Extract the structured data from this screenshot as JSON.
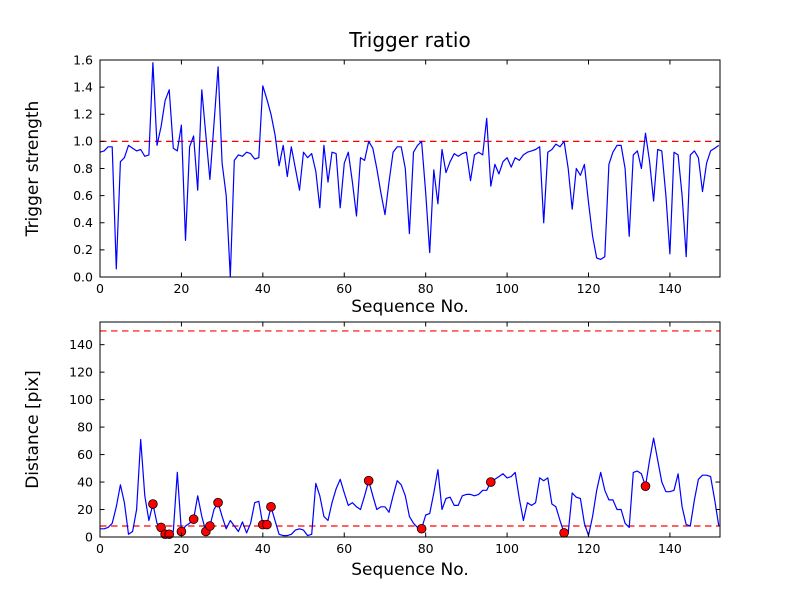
{
  "figure": {
    "background": "#ffffff",
    "frame_color": "#000000",
    "line_color": "#0000ff",
    "threshold_color": "#ff0000",
    "scatter_fill": "#ff0000",
    "scatter_edge": "#000000"
  },
  "chart_data": [
    {
      "type": "line",
      "title": "Trigger ratio",
      "xlabel": "Sequence No.",
      "ylabel": "Trigger strength",
      "xlim": [
        0,
        152.3
      ],
      "ylim": [
        0,
        1.6
      ],
      "grid": false,
      "legend": null,
      "xticks": [
        0,
        20,
        40,
        60,
        80,
        100,
        120,
        140
      ],
      "yticks": [
        0.0,
        0.2,
        0.4,
        0.6,
        0.8,
        1.0,
        1.2,
        1.4,
        1.6
      ],
      "ytick_labels": [
        "0.0",
        "0.2",
        "0.4",
        "0.6",
        "0.8",
        "1.0",
        "1.2",
        "1.4",
        "1.6"
      ],
      "thresholds": [
        {
          "y": 1.0,
          "style": "dashed",
          "color": "#ff0000"
        }
      ],
      "x_start": 0,
      "x_step": 1,
      "values": [
        0.92,
        0.93,
        0.96,
        0.96,
        0.06,
        0.85,
        0.88,
        0.97,
        0.95,
        0.93,
        0.94,
        0.89,
        0.9,
        1.58,
        0.97,
        1.11,
        1.3,
        1.38,
        0.95,
        0.93,
        1.12,
        0.27,
        0.96,
        1.04,
        0.64,
        1.38,
        1.05,
        0.72,
        1.13,
        1.55,
        0.84,
        0.6,
        0.0,
        0.86,
        0.9,
        0.89,
        0.92,
        0.91,
        0.87,
        0.88,
        1.41,
        1.31,
        1.2,
        1.05,
        0.82,
        0.97,
        0.74,
        0.96,
        0.8,
        0.64,
        0.92,
        0.88,
        0.91,
        0.78,
        0.51,
        0.97,
        0.7,
        0.92,
        0.91,
        0.51,
        0.84,
        0.92,
        0.7,
        0.45,
        0.88,
        0.86,
        1.0,
        0.95,
        0.8,
        0.62,
        0.46,
        0.7,
        0.92,
        0.96,
        0.96,
        0.8,
        0.32,
        0.92,
        0.97,
        1.0,
        0.62,
        0.18,
        0.79,
        0.54,
        0.94,
        0.77,
        0.85,
        0.91,
        0.89,
        0.91,
        0.92,
        0.71,
        0.9,
        0.92,
        0.9,
        1.17,
        0.67,
        0.83,
        0.76,
        0.85,
        0.88,
        0.81,
        0.88,
        0.86,
        0.9,
        0.92,
        0.93,
        0.94,
        0.96,
        0.4,
        0.92,
        0.94,
        0.98,
        0.96,
        1.0,
        0.8,
        0.5,
        0.8,
        0.75,
        0.83,
        0.55,
        0.3,
        0.14,
        0.13,
        0.15,
        0.83,
        0.92,
        0.97,
        0.97,
        0.8,
        0.3,
        0.9,
        0.93,
        0.8,
        1.06,
        0.85,
        0.56,
        0.94,
        0.93,
        0.6,
        0.17,
        0.92,
        0.9,
        0.6,
        0.15,
        0.9,
        0.93,
        0.88,
        0.63,
        0.84,
        0.93,
        0.95,
        0.97
      ]
    },
    {
      "type": "line+scatter",
      "title": "",
      "xlabel": "Sequence No.",
      "ylabel": "Distance [pix]",
      "xlim": [
        0,
        152.3
      ],
      "ylim": [
        0,
        156.5
      ],
      "grid": false,
      "legend": null,
      "xticks": [
        0,
        20,
        40,
        60,
        80,
        100,
        120,
        140
      ],
      "yticks": [
        0,
        20,
        40,
        60,
        80,
        100,
        120,
        140
      ],
      "ytick_labels": [
        "0",
        "20",
        "40",
        "60",
        "80",
        "100",
        "120",
        "140"
      ],
      "thresholds": [
        {
          "y": 150,
          "style": "dashed",
          "color": "#ff0000"
        },
        {
          "y": 8,
          "style": "dashed",
          "color": "#ff0000"
        }
      ],
      "x_start": 0,
      "x_step": 1,
      "values": [
        6,
        6,
        7,
        10,
        22,
        38,
        25,
        2,
        4,
        20,
        71,
        30,
        12,
        24,
        10,
        7,
        2,
        2,
        4,
        47,
        4,
        8,
        10,
        13,
        30,
        15,
        4,
        8,
        20,
        25,
        15,
        6,
        12,
        8,
        4,
        11,
        3,
        10,
        25,
        26,
        9,
        9,
        22,
        12,
        2,
        1,
        1,
        2,
        5,
        6,
        5,
        1,
        2,
        39,
        30,
        15,
        12,
        25,
        35,
        42,
        32,
        23,
        25,
        22,
        20,
        30,
        41,
        30,
        20,
        22,
        22,
        18,
        30,
        41,
        38,
        30,
        15,
        10,
        7,
        6,
        16,
        17,
        32,
        49,
        20,
        28,
        29,
        23,
        23,
        30,
        31,
        31,
        30,
        31,
        34,
        34,
        40,
        42,
        44,
        46,
        43,
        44,
        47,
        28,
        12,
        25,
        23,
        25,
        43,
        41,
        43,
        24,
        22,
        12,
        3,
        3,
        32,
        29,
        28,
        10,
        1,
        15,
        34,
        47,
        34,
        27,
        27,
        20,
        20,
        10,
        7,
        47,
        48,
        46,
        37,
        56,
        72,
        56,
        40,
        33,
        33,
        34,
        46,
        22,
        9,
        8,
        27,
        42,
        45,
        45,
        44,
        27,
        8
      ],
      "scatter_points": [
        [
          13,
          24
        ],
        [
          15,
          7
        ],
        [
          16,
          2
        ],
        [
          17,
          2
        ],
        [
          20,
          4
        ],
        [
          23,
          13
        ],
        [
          26,
          4
        ],
        [
          27,
          8
        ],
        [
          29,
          25
        ],
        [
          40,
          9
        ],
        [
          41,
          9
        ],
        [
          42,
          22
        ],
        [
          66,
          41
        ],
        [
          79,
          6
        ],
        [
          96,
          40
        ],
        [
          114,
          3
        ],
        [
          134,
          37
        ]
      ]
    }
  ]
}
